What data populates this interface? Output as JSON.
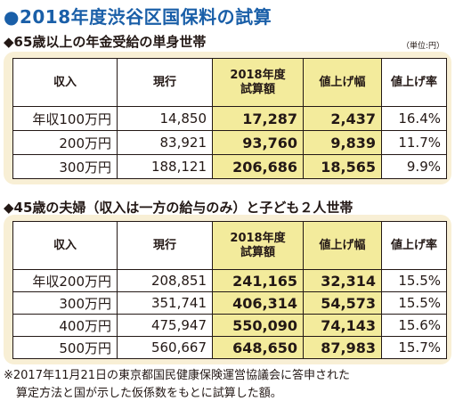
{
  "title": "●2018年度渋谷区国保料の試算",
  "unit": "（単位:円）",
  "section1": {
    "heading": "◆65歳以上の年金受給の単身世帯",
    "headers": [
      "収入",
      "現行",
      "2018年度\n試算額",
      "値上げ幅",
      "値上げ率"
    ],
    "rows": [
      [
        "年収100万円",
        "14,850",
        "17,287",
        "2,437",
        "16.4%"
      ],
      [
        "200万円",
        "83,921",
        "93,760",
        "9,839",
        "11.7%"
      ],
      [
        "300万円",
        "188,121",
        "206,686",
        "18,565",
        "9.9%"
      ]
    ]
  },
  "section2": {
    "heading": "◆45歳の夫婦（収入は一方の給与のみ）と子ども２人世帯",
    "headers": [
      "収入",
      "現行",
      "2018年度\n試算額",
      "値上げ幅",
      "値上げ率"
    ],
    "rows": [
      [
        "年収200万円",
        "208,851",
        "241,165",
        "32,314",
        "15.5%"
      ],
      [
        "300万円",
        "351,741",
        "406,314",
        "54,573",
        "15.5%"
      ],
      [
        "400万円",
        "475,947",
        "550,090",
        "74,143",
        "15.6%"
      ],
      [
        "500万円",
        "560,667",
        "648,650",
        "87,983",
        "15.7%"
      ]
    ]
  },
  "note": {
    "line1": "※2017年11月21日の東京都国民健康保険運営協議会に答申された",
    "line2": "算定方法と国が示した仮係数をもとに試算した額。"
  },
  "colors": {
    "title": "#1a5fa8",
    "card_bg": "#f8efd5",
    "highlight": "#f3eb9c"
  }
}
